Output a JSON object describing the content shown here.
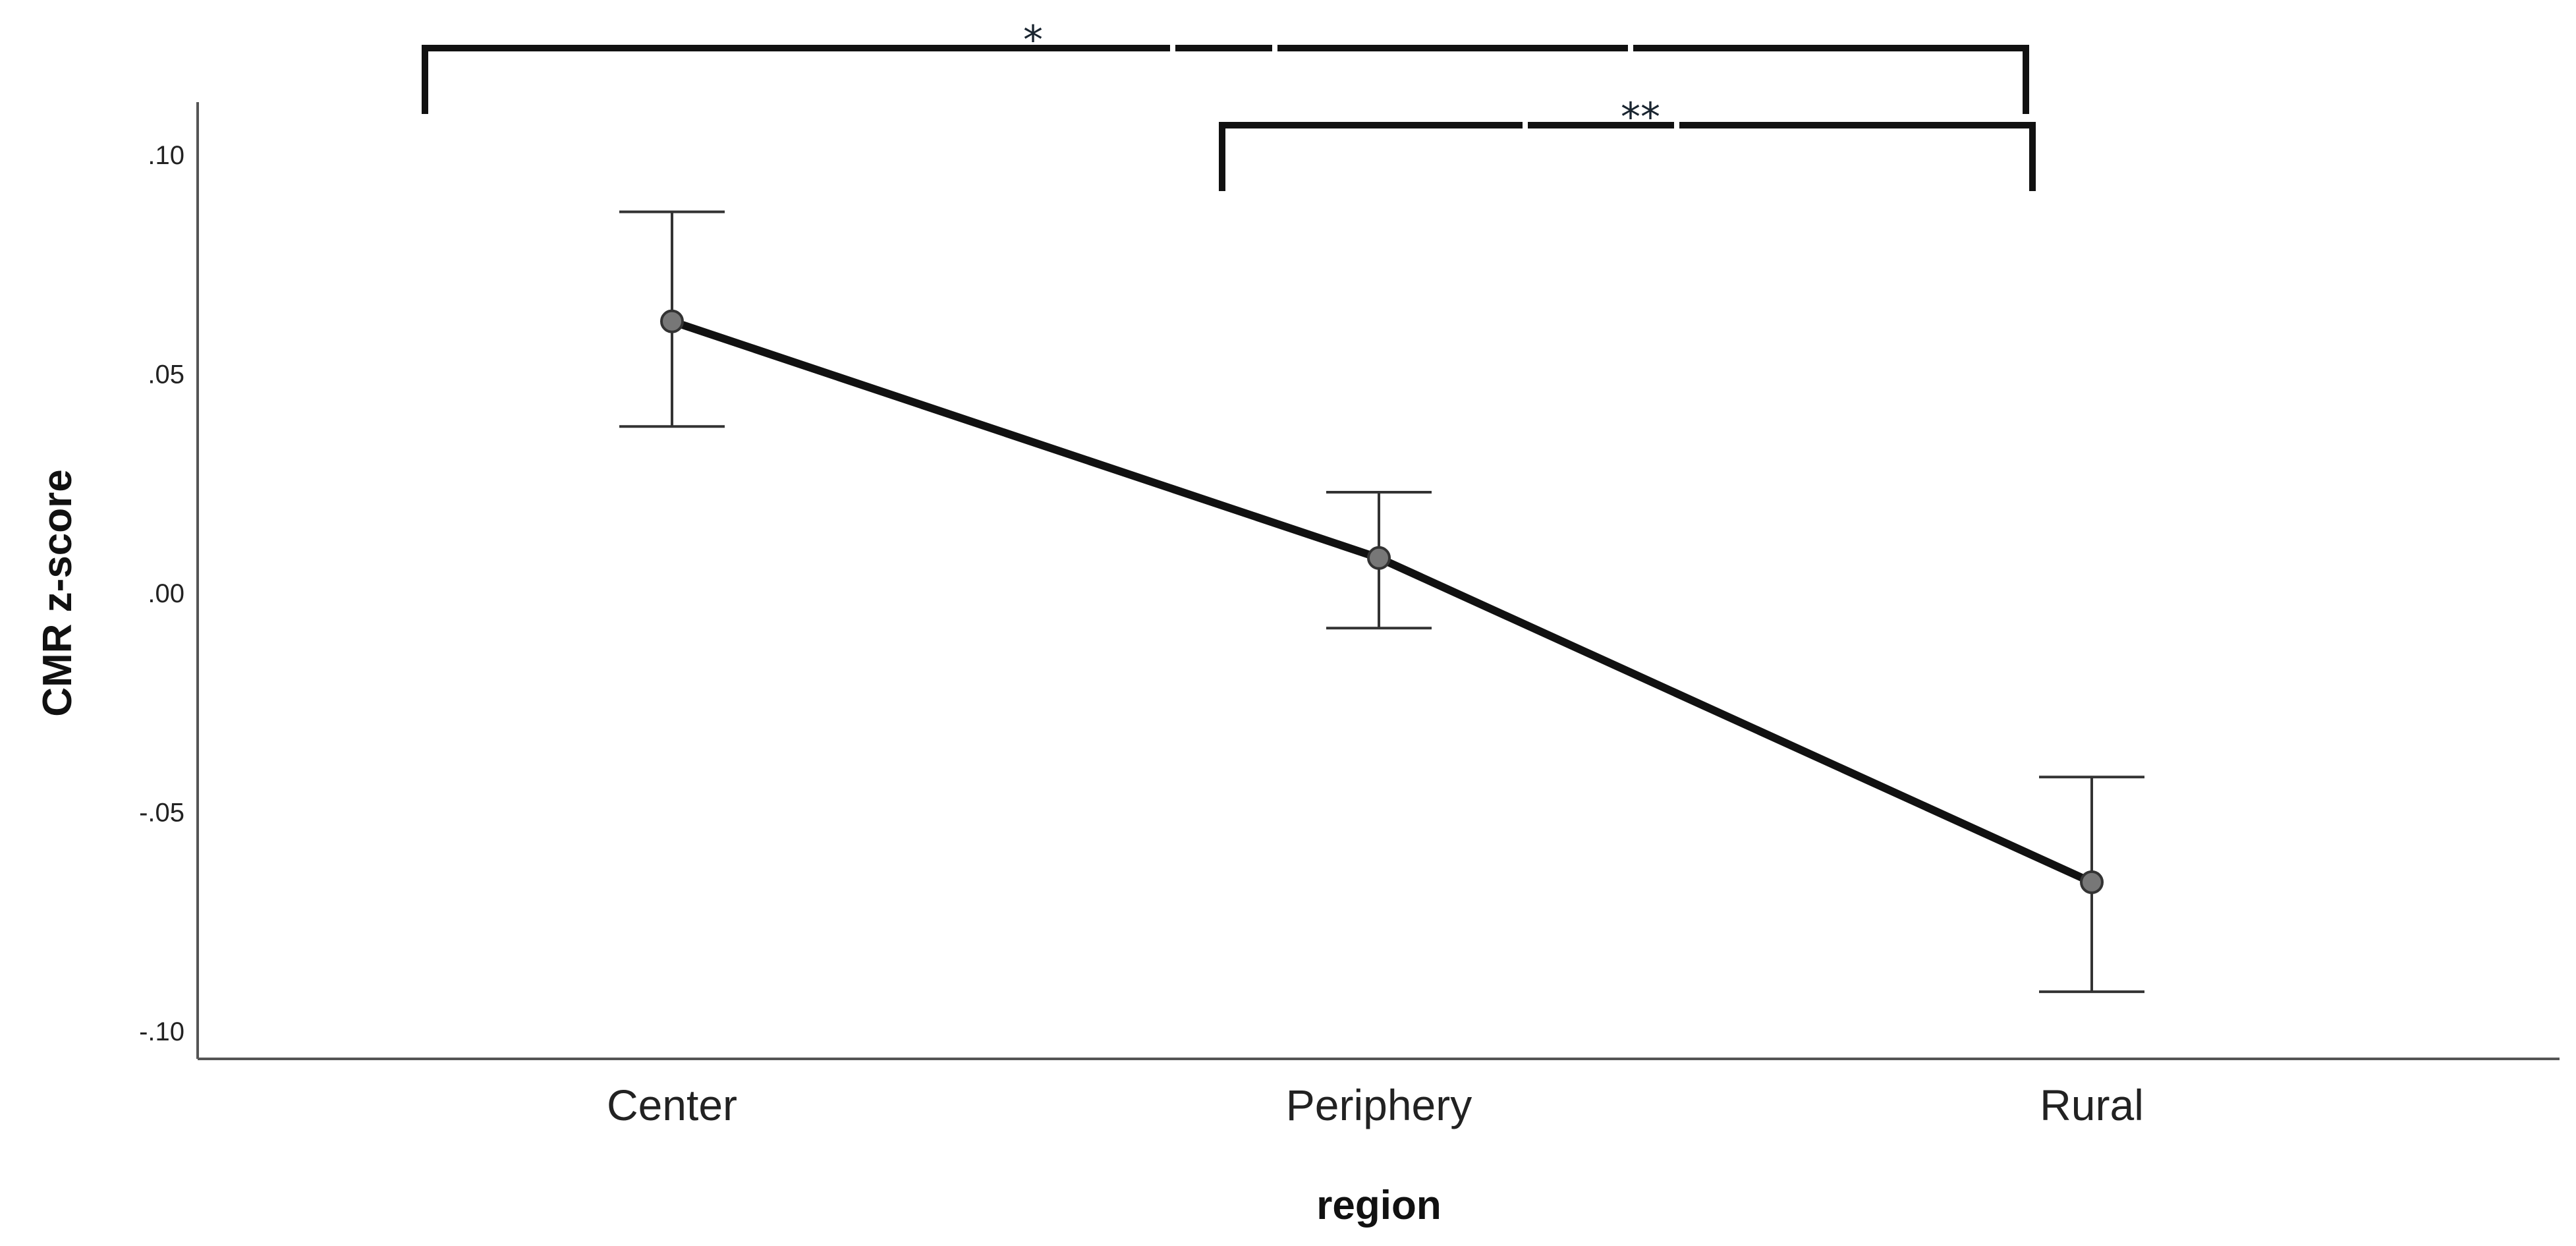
{
  "chart_data": {
    "type": "line",
    "title": "",
    "xlabel": "region",
    "ylabel": "CMR z-score",
    "categories": [
      "Center",
      "Periphery",
      "Rural"
    ],
    "series": [
      {
        "values": [
          0.062,
          0.008,
          -0.066
        ],
        "error_low": [
          0.038,
          -0.008,
          -0.091
        ],
        "error_high": [
          0.087,
          0.023,
          -0.042
        ]
      }
    ],
    "ylim": [
      -0.105,
      0.11
    ],
    "yticks": [
      {
        "value": 0.1,
        "label": ".10"
      },
      {
        "value": 0.05,
        "label": ".05"
      },
      {
        "value": 0.0,
        "label": ".00"
      },
      {
        "value": -0.05,
        "label": "-.05"
      },
      {
        "value": -0.1,
        "label": "-.10"
      }
    ],
    "grid": false,
    "annotations": [
      {
        "from": "Center",
        "to": "Rural",
        "label": "*"
      },
      {
        "from": "Periphery",
        "to": "Rural",
        "label": "**"
      }
    ]
  }
}
